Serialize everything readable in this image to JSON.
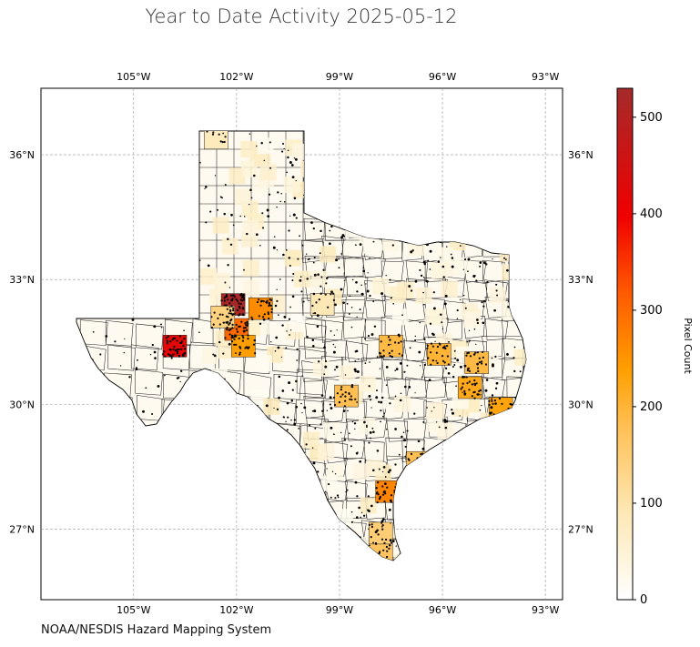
{
  "title": "Year to Date Activity 2025-05-12",
  "footer": "NOAA/NESDIS Hazard Mapping System",
  "map": {
    "region": "Texas",
    "lon_range": [
      -107.7,
      -92.5
    ],
    "lat_range": [
      25.3,
      37.6
    ],
    "lon_ticks": [
      {
        "value": -105,
        "label": "105°W"
      },
      {
        "value": -102,
        "label": "102°W"
      },
      {
        "value": -99,
        "label": "99°W"
      },
      {
        "value": -96,
        "label": "96°W"
      },
      {
        "value": -93,
        "label": "93°W"
      }
    ],
    "lat_ticks": [
      {
        "value": 36,
        "label": "36°N"
      },
      {
        "value": 33,
        "label": "33°N"
      },
      {
        "value": 30,
        "label": "30°N"
      },
      {
        "value": 27,
        "label": "27°N"
      }
    ],
    "grid": true,
    "hot_counties": [
      {
        "lon": -102.1,
        "lat": 32.4,
        "count": 520
      },
      {
        "lon": -103.8,
        "lat": 31.4,
        "count": 420
      },
      {
        "lon": -102.0,
        "lat": 31.8,
        "count": 300
      },
      {
        "lon": -101.3,
        "lat": 32.3,
        "count": 260
      },
      {
        "lon": -101.8,
        "lat": 31.4,
        "count": 240
      },
      {
        "lon": -97.6,
        "lat": 27.9,
        "count": 270
      },
      {
        "lon": -94.3,
        "lat": 29.9,
        "count": 230
      },
      {
        "lon": -95.2,
        "lat": 30.4,
        "count": 220
      },
      {
        "lon": -96.1,
        "lat": 31.2,
        "count": 200
      },
      {
        "lon": -97.5,
        "lat": 31.4,
        "count": 190
      },
      {
        "lon": -98.8,
        "lat": 30.2,
        "count": 180
      },
      {
        "lon": -95.0,
        "lat": 31.0,
        "count": 190
      },
      {
        "lon": -96.7,
        "lat": 28.6,
        "count": 180
      },
      {
        "lon": -97.8,
        "lat": 26.4,
        "count": 170
      },
      {
        "lon": -97.8,
        "lat": 26.9,
        "count": 150
      },
      {
        "lon": -102.4,
        "lat": 32.1,
        "count": 140
      },
      {
        "lon": -99.5,
        "lat": 32.4,
        "count": 90
      },
      {
        "lon": -102.6,
        "lat": 36.4,
        "count": 80
      }
    ]
  },
  "colorbar": {
    "label": "Pixel Count",
    "min": 0,
    "max": 530,
    "ticks": [
      "0",
      "100",
      "200",
      "300",
      "400",
      "500"
    ],
    "colors": [
      "#ffffff",
      "#fde8b5",
      "#ffb24a",
      "#ff8a00",
      "#ff3b00",
      "#e60000",
      "#a52a2a"
    ]
  }
}
